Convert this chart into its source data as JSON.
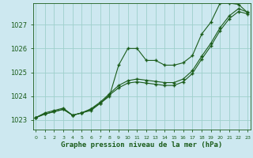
{
  "background_color": "#cde8f0",
  "grid_color": "#9ecfcc",
  "line_color": "#1a5c1a",
  "marker_color": "#1a5c1a",
  "xlabel": "Graphe pression niveau de la mer (hPa)",
  "xlabel_fontsize": 6.5,
  "ylabel_ticks": [
    1023,
    1024,
    1025,
    1026,
    1027
  ],
  "xticks": [
    0,
    1,
    2,
    3,
    4,
    5,
    6,
    7,
    8,
    9,
    10,
    11,
    12,
    13,
    14,
    15,
    16,
    17,
    18,
    19,
    20,
    21,
    22,
    23
  ],
  "ylim": [
    1022.6,
    1027.9
  ],
  "xlim": [
    -0.3,
    23.3
  ],
  "series1": [
    1023.1,
    1023.3,
    1023.4,
    1023.5,
    1023.2,
    1023.3,
    1023.4,
    1023.7,
    1024.0,
    1025.3,
    1026.0,
    1026.0,
    1025.5,
    1025.5,
    1025.3,
    1025.3,
    1025.4,
    1025.7,
    1026.6,
    1027.1,
    1027.9,
    1027.9,
    1027.85,
    1027.5
  ],
  "series2": [
    1023.1,
    1023.25,
    1023.35,
    1023.45,
    1023.2,
    1023.3,
    1023.45,
    1023.7,
    1024.05,
    1024.35,
    1024.55,
    1024.6,
    1024.55,
    1024.5,
    1024.45,
    1024.45,
    1024.6,
    1024.95,
    1025.55,
    1026.1,
    1026.75,
    1027.25,
    1027.55,
    1027.45
  ],
  "series3": [
    1023.1,
    1023.25,
    1023.35,
    1023.45,
    1023.2,
    1023.3,
    1023.47,
    1023.75,
    1024.1,
    1024.45,
    1024.65,
    1024.72,
    1024.67,
    1024.62,
    1024.57,
    1024.57,
    1024.72,
    1025.07,
    1025.67,
    1026.22,
    1026.87,
    1027.37,
    1027.67,
    1027.52
  ]
}
